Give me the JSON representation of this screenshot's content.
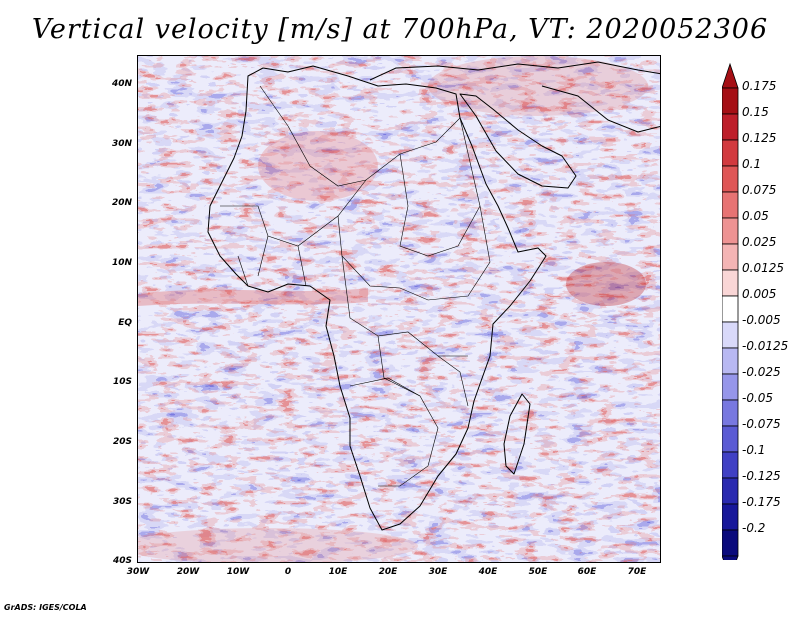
{
  "title": "Vertical velocity [m/s] at 700hPa, VT: 2020052306",
  "map": {
    "lat_labels": [
      "40N",
      "30N",
      "20N",
      "10N",
      "EQ",
      "10S",
      "20S",
      "30S",
      "40S"
    ],
    "lon_labels": [
      "30W",
      "20W",
      "10W",
      "0",
      "10E",
      "20E",
      "30E",
      "40E",
      "50E",
      "60E",
      "70E"
    ],
    "lat_range": [
      -40,
      45
    ],
    "lon_range": [
      -30,
      75
    ]
  },
  "colorbar": {
    "levels": [
      "0.175",
      "0.15",
      "0.125",
      "0.1",
      "0.075",
      "0.05",
      "0.025",
      "0.0125",
      "0.005",
      "-0.005",
      "-0.0125",
      "-0.025",
      "-0.05",
      "-0.075",
      "-0.1",
      "-0.125",
      "-0.175",
      "-0.2"
    ],
    "colors": [
      "#a50f15",
      "#be1e2a",
      "#d23a3f",
      "#df5656",
      "#e77373",
      "#ee9393",
      "#f4b4b4",
      "#f9d6d6",
      "#ffffff",
      "#d9d9f9",
      "#b8b8f2",
      "#9696ea",
      "#7878e0",
      "#5b5bd4",
      "#4040c4",
      "#2a2ab0",
      "#18189a",
      "#0a0a7c"
    ]
  },
  "credit": "GrADS: IGES/COLA"
}
